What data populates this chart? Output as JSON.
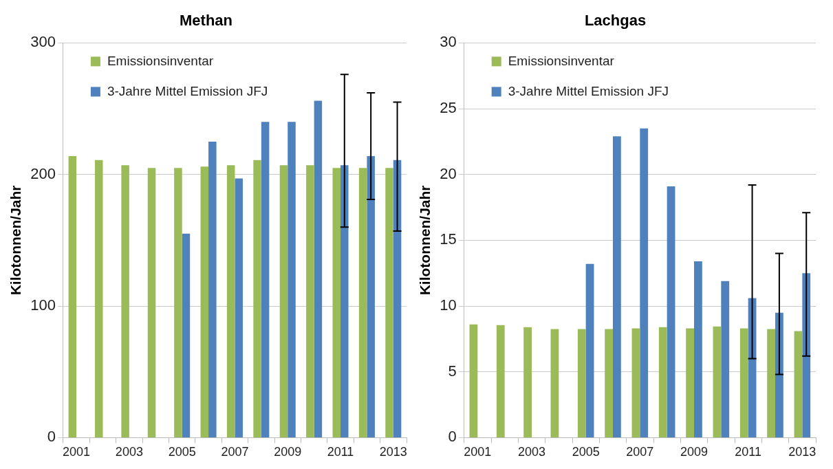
{
  "chart_data": [
    {
      "type": "bar",
      "title": "Methan",
      "ylabel": "Kilotonnen/Jahr",
      "categories": [
        "2001",
        null,
        "2003",
        null,
        "2005",
        null,
        "2007",
        null,
        "2009",
        null,
        "2011",
        null,
        "2013"
      ],
      "series": [
        {
          "name": "Emissionsinventar",
          "color": "#9bbb59",
          "values": [
            214,
            211,
            207,
            205,
            205,
            206,
            207,
            211,
            207,
            207,
            205,
            205,
            205
          ]
        },
        {
          "name": "3-Jahre Mittel Emission JFJ",
          "color": "#4f81bd",
          "values": [
            null,
            null,
            null,
            null,
            155,
            225,
            197,
            240,
            240,
            256,
            207,
            214,
            211
          ],
          "errors": [
            null,
            null,
            null,
            null,
            null,
            null,
            null,
            null,
            null,
            null,
            [
              160,
              276
            ],
            [
              181,
              262
            ],
            [
              157,
              255
            ]
          ]
        }
      ],
      "ylim": [
        0,
        300
      ],
      "yticks": [
        0,
        100,
        200,
        300
      ],
      "grid": "y",
      "legend": "top left"
    },
    {
      "type": "bar",
      "title": "Lachgas",
      "ylabel": "Kilotonnen/Jahr",
      "categories": [
        "2001",
        null,
        "2003",
        null,
        "2005",
        null,
        "2007",
        null,
        "2009",
        null,
        "2011",
        null,
        "2013"
      ],
      "series": [
        {
          "name": "Emissionsinventar",
          "color": "#9bbb59",
          "values": [
            8.6,
            8.55,
            8.4,
            8.25,
            8.25,
            8.25,
            8.3,
            8.4,
            8.3,
            8.45,
            8.3,
            8.25,
            8.1
          ]
        },
        {
          "name": "3-Jahre Mittel Emission JFJ",
          "color": "#4f81bd",
          "values": [
            null,
            null,
            null,
            null,
            13.2,
            22.9,
            23.5,
            19.1,
            13.4,
            11.9,
            10.6,
            9.5,
            12.5
          ],
          "errors": [
            null,
            null,
            null,
            null,
            null,
            null,
            null,
            null,
            null,
            null,
            [
              6,
              19.2
            ],
            [
              4.8,
              14
            ],
            [
              6.2,
              17.1
            ]
          ]
        }
      ],
      "ylim": [
        0,
        30
      ],
      "yticks": [
        0,
        5,
        10,
        15,
        20,
        25,
        30
      ],
      "grid": "y",
      "legend": "top left"
    }
  ]
}
